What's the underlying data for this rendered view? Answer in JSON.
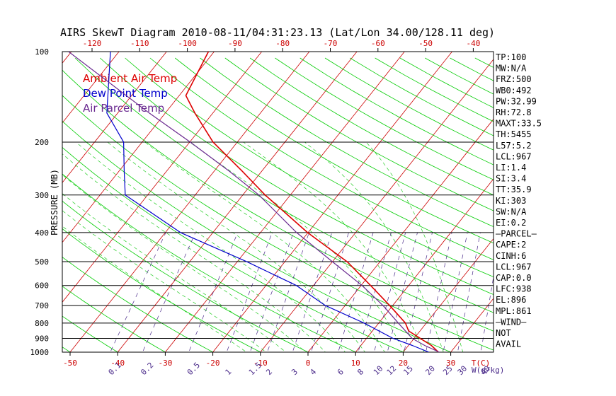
{
  "chart_data": {
    "type": "line",
    "title": "AIRS SkewT Diagram 2010-08-11/04:31:23.13 (Lat/Lon 34.00/128.11 deg)",
    "ylabel": "PRESSURE (MB)",
    "bottom_temp_unit": "T(C)",
    "mixing_ratio_unit": "W(g/kg)",
    "pressure_levels": [
      100,
      200,
      300,
      400,
      500,
      600,
      700,
      800,
      900,
      1000
    ],
    "bottom_temp_ticks": [
      -50,
      -40,
      -30,
      -20,
      -10,
      0,
      10,
      20,
      30
    ],
    "top_temp_ticks": [
      -120,
      -110,
      -100,
      -90,
      -80,
      -70,
      -60,
      -50,
      -40
    ],
    "mixing_ratio_labels": [
      "0.1",
      "0.2",
      "0.5",
      "1",
      "1.5",
      "2",
      "3",
      "4",
      "6",
      "8",
      "10",
      "12",
      "15",
      "20",
      "25",
      "30",
      "40"
    ],
    "legend": [
      {
        "label": "Ambient Air Temp",
        "color": "#dd0000"
      },
      {
        "label": "Dew Point Temp",
        "color": "#0000cc"
      },
      {
        "label": "Air Parcel Temp",
        "color": "#6a2a90"
      }
    ],
    "colors": {
      "isotherm": "#cc0000",
      "dry_adiabat": "#00cc00",
      "moist_adiabat": "#22cc22",
      "mixing_ratio": "#4a2a8a",
      "isobar": "#000000",
      "title": "#000000",
      "top_ticks": "#cc0000",
      "bottom_ticks": "#cc0000",
      "mixing_labels": "#4a2a8a"
    },
    "series": [
      {
        "name": "Ambient Air Temp",
        "color": "#dd0000",
        "width": 1.6,
        "points": [
          {
            "p": 100,
            "t": -71.2
          },
          {
            "p": 140,
            "t": -68.6
          },
          {
            "p": 160,
            "t": -63.8
          },
          {
            "p": 200,
            "t": -55.1
          },
          {
            "p": 250,
            "t": -44.1
          },
          {
            "p": 300,
            "t": -35.3
          },
          {
            "p": 400,
            "t": -20.1
          },
          {
            "p": 500,
            "t": -6.9
          },
          {
            "p": 600,
            "t": 2.0
          },
          {
            "p": 700,
            "t": 9.4
          },
          {
            "p": 800,
            "t": 15.6
          },
          {
            "p": 850,
            "t": 17.6
          },
          {
            "p": 900,
            "t": 21.3
          },
          {
            "p": 950,
            "t": 24.8
          },
          {
            "p": 1000,
            "t": 27.4
          }
        ]
      },
      {
        "name": "Dew Point Temp",
        "color": "#0000cc",
        "width": 1.2,
        "points": [
          {
            "p": 100,
            "t": -91.8
          },
          {
            "p": 160,
            "t": -82.3
          },
          {
            "p": 200,
            "t": -73.9
          },
          {
            "p": 250,
            "t": -68.9
          },
          {
            "p": 300,
            "t": -64.7
          },
          {
            "p": 400,
            "t": -46.8
          },
          {
            "p": 500,
            "t": -28.0
          },
          {
            "p": 600,
            "t": -13.6
          },
          {
            "p": 700,
            "t": -4.1
          },
          {
            "p": 800,
            "t": 6.9
          },
          {
            "p": 900,
            "t": 15.6
          },
          {
            "p": 950,
            "t": 20.8
          },
          {
            "p": 1000,
            "t": 25.4
          }
        ]
      },
      {
        "name": "Air Parcel Temp",
        "color": "#6a2a90",
        "width": 1.2,
        "points": [
          {
            "p": 100,
            "t": -100.6
          },
          {
            "p": 160,
            "t": -73.4
          },
          {
            "p": 200,
            "t": -59.9
          },
          {
            "p": 250,
            "t": -46.8
          },
          {
            "p": 300,
            "t": -36.6
          },
          {
            "p": 400,
            "t": -22.4
          },
          {
            "p": 500,
            "t": -10.0
          },
          {
            "p": 600,
            "t": 0.2
          },
          {
            "p": 700,
            "t": 8.0
          },
          {
            "p": 800,
            "t": 14.1
          },
          {
            "p": 900,
            "t": 19.6
          },
          {
            "p": 950,
            "t": 23.4
          },
          {
            "p": 1000,
            "t": 27.6
          }
        ]
      }
    ],
    "indices": [
      "TP:100",
      "MW:N/A",
      "FRZ:500",
      "WB0:492",
      "PW:32.99",
      "RH:72.8",
      "MAXT:33.5",
      "TH:5455",
      "L57:5.2",
      "LCL:967",
      "LI:1.4",
      "SI:3.4",
      "TT:35.9",
      "KI:303",
      "SW:N/A",
      "EI:0.2",
      "—PARCEL—",
      "CAPE:2",
      "CINH:6",
      "LCL:967",
      "CAP:0.0",
      "LFC:938",
      "EL:896",
      "MPL:861",
      "—WIND—",
      "NOT",
      "AVAIL"
    ]
  }
}
